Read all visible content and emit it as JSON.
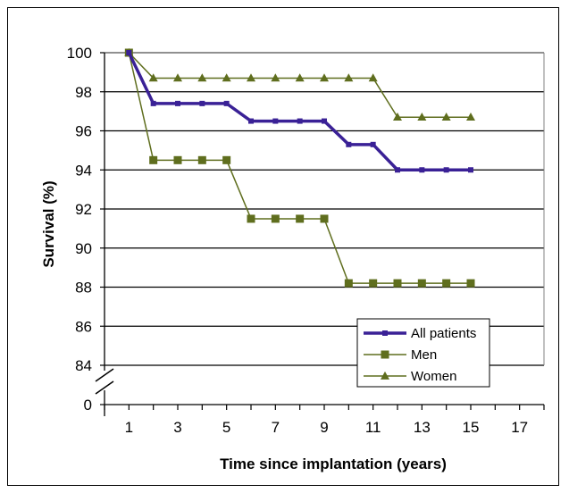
{
  "chart_data": {
    "type": "line",
    "xlabel": "Time since implantation (years)",
    "ylabel": "Survival (%)",
    "x_ticks": [
      1,
      3,
      5,
      7,
      9,
      11,
      13,
      15,
      17
    ],
    "y_ticks": [
      84,
      86,
      88,
      90,
      92,
      94,
      96,
      98,
      100
    ],
    "y_bottom_tick": 0,
    "xlim": [
      0,
      18
    ],
    "ylim": [
      84,
      100
    ],
    "axis_break": true,
    "grid": "horizontal",
    "legend_position": "bottom-right",
    "series": [
      {
        "name": "All patients",
        "color": "#3a2196",
        "marker": "square",
        "step": true,
        "x": [
          1,
          2,
          3,
          4,
          5,
          6,
          7,
          8,
          9,
          10,
          11,
          12,
          13,
          14,
          15
        ],
        "y": [
          100,
          97.4,
          97.4,
          97.4,
          97.4,
          96.5,
          96.5,
          96.5,
          96.5,
          95.3,
          95.3,
          94.0,
          94.0,
          94.0,
          94.0
        ]
      },
      {
        "name": "Men",
        "color": "#5f6e1e",
        "marker": "square",
        "step": true,
        "x": [
          1,
          2,
          3,
          4,
          5,
          6,
          7,
          8,
          9,
          10,
          11,
          12,
          13,
          14,
          15
        ],
        "y": [
          100,
          94.5,
          94.5,
          94.5,
          94.5,
          91.5,
          91.5,
          91.5,
          91.5,
          88.2,
          88.2,
          88.2,
          88.2,
          88.2,
          88.2
        ]
      },
      {
        "name": "Women",
        "color": "#5f6e1e",
        "marker": "triangle",
        "step": false,
        "x": [
          1,
          2,
          3,
          4,
          5,
          6,
          7,
          8,
          9,
          10,
          11,
          12,
          13,
          14,
          15
        ],
        "y": [
          100,
          98.7,
          98.7,
          98.7,
          98.7,
          98.7,
          98.7,
          98.7,
          98.7,
          98.7,
          98.7,
          96.7,
          96.7,
          96.7,
          96.7
        ]
      }
    ]
  }
}
